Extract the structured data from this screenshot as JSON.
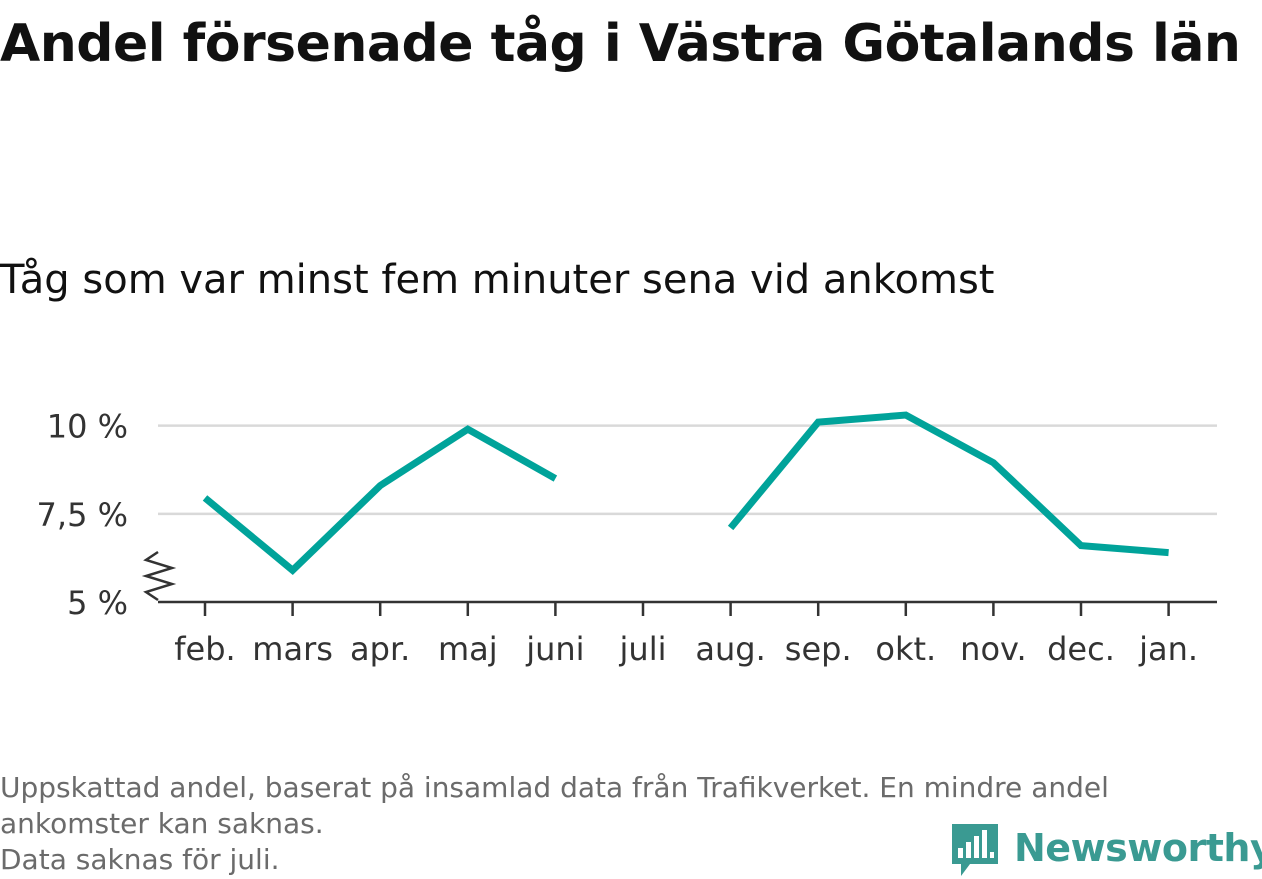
{
  "title": "Andel försenade tåg i Västra Götalands län",
  "subtitle": "Tåg som var minst fem minuter sena vid ankomst",
  "footnote": {
    "line1": "Uppskattad andel, baserat på insamlad data från Trafikverket. En mindre andel",
    "line2": "ankomster kan saknas.",
    "line3": "Data saknas för juli."
  },
  "brand": {
    "name": "Newsworthy",
    "color": "#3a9a92"
  },
  "chart_data": {
    "type": "line",
    "title": "Andel försenade tåg i Västra Götalands län",
    "subtitle": "Tåg som var minst fem minuter sena vid ankomst",
    "categories": [
      "feb.",
      "mars",
      "apr.",
      "maj",
      "juni",
      "juli",
      "aug.",
      "sep.",
      "okt.",
      "nov.",
      "dec.",
      "jan."
    ],
    "series": [
      {
        "values": [
          7.95,
          5.9,
          8.3,
          9.9,
          8.5,
          null,
          7.1,
          10.1,
          10.3,
          8.95,
          6.6,
          6.4
        ]
      }
    ],
    "ylim": [
      5,
      10.5
    ],
    "yticks": [
      5,
      7.5,
      10
    ],
    "ytick_labels": [
      "5 %",
      "7,5 %",
      "10 %"
    ],
    "axis_break": true,
    "grid": true,
    "line_color": "#00a39a",
    "grid_color": "#d9d9d9",
    "axis_color": "#333333"
  }
}
